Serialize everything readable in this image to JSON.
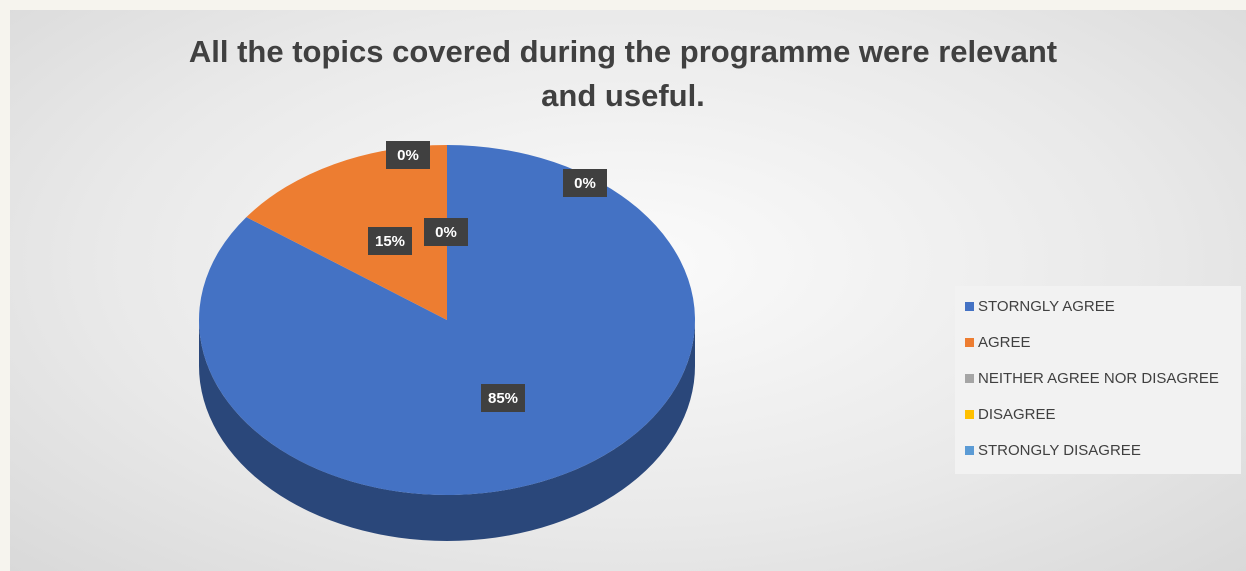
{
  "chart_data": {
    "type": "pie",
    "title": "All the topics covered during the programme were relevant and useful.",
    "title_lines": [
      "All the topics covered during the programme were relevant",
      "and useful."
    ],
    "categories": [
      "STORNGLY AGREE",
      "AGREE",
      "NEITHER AGREE NOR DISAGREE",
      "DISAGREE",
      "STRONGLY DISAGREE"
    ],
    "values": [
      85,
      15,
      0,
      0,
      0
    ],
    "data_labels": [
      "85%",
      "15%",
      "0%",
      "0%",
      "0%"
    ],
    "colors": [
      "#4472c4",
      "#ed7d31",
      "#a5a5a5",
      "#ffc000",
      "#5b9bd5"
    ],
    "legend_position": "right",
    "style": "3d"
  }
}
